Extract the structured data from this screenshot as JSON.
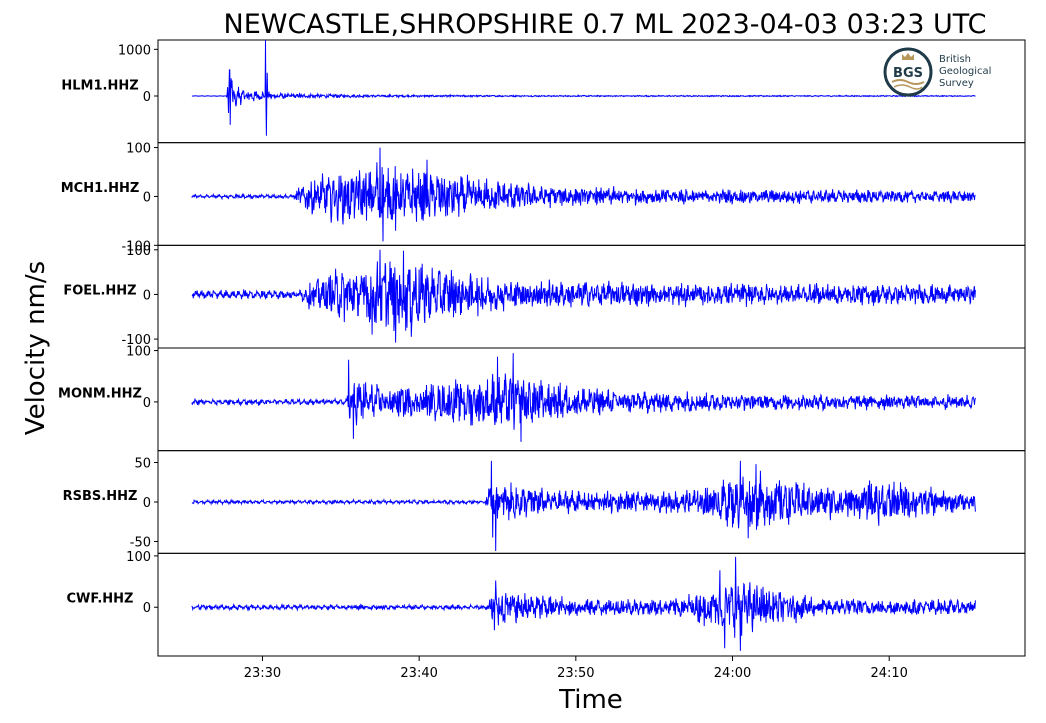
{
  "title": "NEWCASTLE,SHROPSHIRE 0.7 ML   2023-04-03 03:23 UTC",
  "ylabel": "Velocity nm/s",
  "xlabel": "Time",
  "logo": {
    "abbr": "BGS",
    "line1": "British",
    "line2": "Geological",
    "line3": "Survey",
    "color": "#1f3a48",
    "accent": "#b8975a"
  },
  "colors": {
    "trace": "#0000ff",
    "axes": "#000000"
  },
  "chart_data": {
    "type": "line",
    "x_unit": "minute",
    "xlim": [
      "23:23:20",
      "24:18:40"
    ],
    "x_ticks": [
      "23:30",
      "23:40",
      "23:50",
      "24:00",
      "24:10"
    ],
    "trace_start": "23:25:30",
    "trace_end": "24:15:30",
    "series": [
      {
        "name": "HLM1.HHZ",
        "ylim": [
          -1000,
          1200
        ],
        "yticks": [
          1000,
          0
        ],
        "ytick_labels": [
          "1000",
          "0"
        ],
        "noise": 8,
        "envelope": [
          [
            0,
            0
          ],
          [
            2.2,
            0
          ],
          [
            2.3,
            420
          ],
          [
            2.6,
            260
          ],
          [
            3.5,
            120
          ],
          [
            6,
            60
          ],
          [
            10,
            30
          ],
          [
            20,
            15
          ],
          [
            50,
            10
          ]
        ],
        "spikes": [
          [
            2.4,
            560
          ],
          [
            2.45,
            -620
          ],
          [
            2.5,
            380
          ],
          [
            4.7,
            1200
          ],
          [
            4.75,
            -850
          ],
          [
            4.8,
            500
          ],
          [
            2.8,
            -220
          ]
        ]
      },
      {
        "name": "MCH1.HHZ",
        "ylim": [
          -100,
          110
        ],
        "yticks": [
          100,
          0,
          -100
        ],
        "ytick_labels": [
          "100",
          "0",
          "-100"
        ],
        "noise": 5,
        "envelope": [
          [
            0,
            5
          ],
          [
            6.5,
            5
          ],
          [
            7,
            25
          ],
          [
            9,
            50
          ],
          [
            12,
            60
          ],
          [
            14,
            55
          ],
          [
            17,
            40
          ],
          [
            22,
            22
          ],
          [
            30,
            15
          ],
          [
            50,
            12
          ]
        ],
        "spikes": [
          [
            12,
            100
          ],
          [
            12.2,
            -92
          ],
          [
            11.8,
            70
          ],
          [
            15,
            75
          ],
          [
            13,
            -70
          ]
        ]
      },
      {
        "name": "FOEL.HHZ",
        "ylim": [
          -120,
          110
        ],
        "yticks": [
          100,
          0,
          -100
        ],
        "ytick_labels": [
          "100",
          "0",
          "-100"
        ],
        "noise": 12,
        "envelope": [
          [
            0,
            14
          ],
          [
            7,
            14
          ],
          [
            7.5,
            30
          ],
          [
            10,
            60
          ],
          [
            12.5,
            80
          ],
          [
            14,
            75
          ],
          [
            17,
            50
          ],
          [
            21,
            32
          ],
          [
            30,
            25
          ],
          [
            50,
            20
          ]
        ],
        "spikes": [
          [
            12,
            100
          ],
          [
            13,
            -108
          ],
          [
            13.5,
            98
          ],
          [
            14,
            -95
          ],
          [
            11.5,
            -90
          ]
        ]
      },
      {
        "name": "MONM.HHZ",
        "ylim": [
          -95,
          105
        ],
        "yticks": [
          100,
          0
        ],
        "ytick_labels": [
          "100",
          "0"
        ],
        "noise": 7,
        "envelope": [
          [
            0,
            8
          ],
          [
            9.9,
            8
          ],
          [
            10,
            45
          ],
          [
            12,
            30
          ],
          [
            15,
            32
          ],
          [
            18,
            45
          ],
          [
            20.5,
            55
          ],
          [
            23,
            35
          ],
          [
            27,
            22
          ],
          [
            35,
            16
          ],
          [
            50,
            13
          ]
        ],
        "spikes": [
          [
            10,
            82
          ],
          [
            10.3,
            -72
          ],
          [
            19.5,
            88
          ],
          [
            20.5,
            95
          ],
          [
            21,
            -78
          ]
        ]
      },
      {
        "name": "RSBS.HHZ",
        "ylim": [
          -65,
          65
        ],
        "yticks": [
          50,
          0,
          -50
        ],
        "ytick_labels": [
          "50",
          "0",
          "-50"
        ],
        "noise": 3,
        "envelope": [
          [
            0,
            4
          ],
          [
            18.7,
            4
          ],
          [
            19,
            30
          ],
          [
            20,
            22
          ],
          [
            23,
            15
          ],
          [
            30,
            12
          ],
          [
            33,
            20
          ],
          [
            35,
            36
          ],
          [
            37,
            32
          ],
          [
            40,
            18
          ],
          [
            44,
            26
          ],
          [
            48,
            14
          ],
          [
            50,
            12
          ]
        ],
        "spikes": [
          [
            19.1,
            52
          ],
          [
            19.4,
            -62
          ],
          [
            19.2,
            -45
          ],
          [
            35,
            52
          ],
          [
            36,
            48
          ],
          [
            35.5,
            -46
          ]
        ]
      },
      {
        "name": "CWF.HHZ",
        "ylim": [
          -95,
          105
        ],
        "yticks": [
          100,
          0
        ],
        "ytick_labels": [
          "100",
          "0"
        ],
        "noise": 6,
        "envelope": [
          [
            0,
            8
          ],
          [
            18.9,
            8
          ],
          [
            19.2,
            40
          ],
          [
            20,
            30
          ],
          [
            24,
            18
          ],
          [
            30,
            15
          ],
          [
            32,
            25
          ],
          [
            34,
            50
          ],
          [
            35,
            55
          ],
          [
            37,
            35
          ],
          [
            40,
            18
          ],
          [
            50,
            12
          ]
        ],
        "spikes": [
          [
            33.7,
            72
          ],
          [
            34.7,
            98
          ],
          [
            35,
            -85
          ],
          [
            19.3,
            -45
          ],
          [
            19.4,
            52
          ],
          [
            34,
            -80
          ]
        ]
      }
    ]
  }
}
